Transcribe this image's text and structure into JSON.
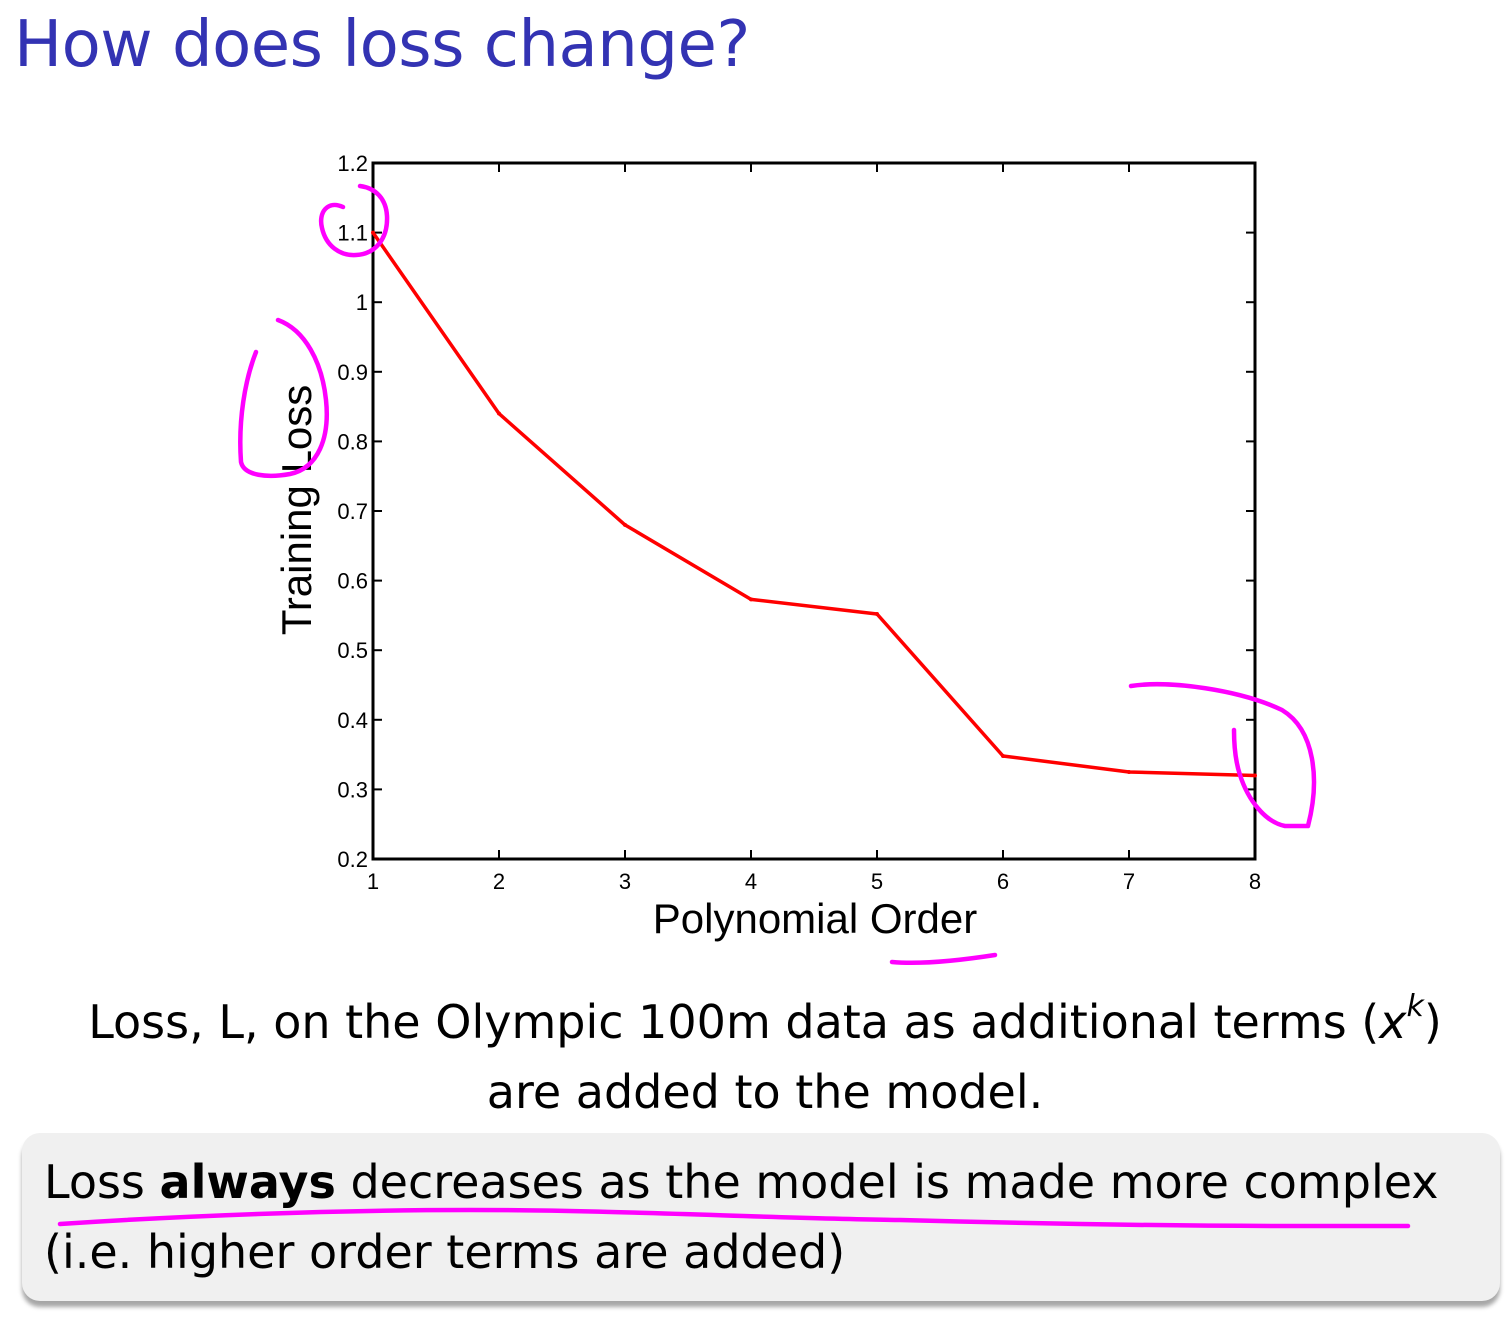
{
  "slide": {
    "title": "How does loss change?",
    "caption_line1_pre": "Loss, L, on the Olympic 100m data as additional terms (",
    "caption_x": "x",
    "caption_k": "k",
    "caption_line1_post": ")",
    "caption_line2": "are added to the model.",
    "callout_pre": "Loss ",
    "callout_bold": "always",
    "callout_post": " decreases as the model is made more complex",
    "callout_line2": "(i.e. higher order terms are added)"
  },
  "colors": {
    "title": "#3333b3",
    "line": "#ff0000",
    "annotation": "#ff00ff",
    "callout_bg": "#f0f0f0"
  },
  "chart_data": {
    "type": "line",
    "title": "",
    "xlabel": "Polynomial Order",
    "ylabel": "Training Loss",
    "xlim": [
      1,
      8
    ],
    "ylim": [
      0.2,
      1.2
    ],
    "xticks": [
      "1",
      "2",
      "3",
      "4",
      "5",
      "6",
      "7",
      "8"
    ],
    "yticks": [
      "0.2",
      "0.3",
      "0.4",
      "0.5",
      "0.6",
      "0.7",
      "0.8",
      "0.9",
      "1",
      "1.1",
      "1.2"
    ],
    "grid": false,
    "series": [
      {
        "x": [
          1,
          2,
          3,
          4,
          5,
          6,
          7,
          8
        ],
        "y": [
          1.1,
          0.84,
          0.68,
          0.573,
          0.552,
          0.348,
          0.325,
          0.32
        ]
      }
    ]
  }
}
